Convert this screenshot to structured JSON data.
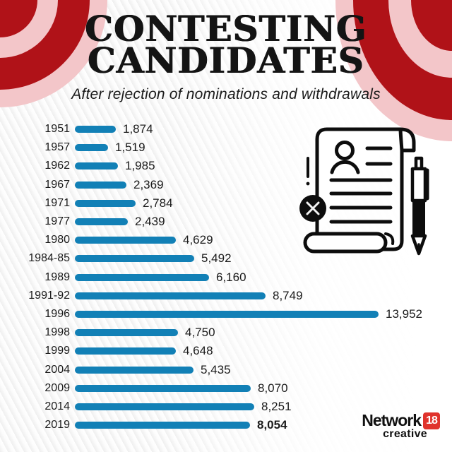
{
  "header": {
    "title_line1": "CONTESTING",
    "title_line2": "CANDIDATES",
    "subtitle": "After rejection of nominations and withdrawals"
  },
  "chart_data": {
    "type": "bar",
    "orientation": "horizontal",
    "title": "Contesting Candidates — After rejection of nominations and withdrawals",
    "xlabel": "",
    "ylabel": "",
    "grid": false,
    "legend": false,
    "xlim": [
      0,
      13952
    ],
    "categories": [
      "1951",
      "1957",
      "1962",
      "1967",
      "1971",
      "1977",
      "1980",
      "1984-85",
      "1989",
      "1991-92",
      "1996",
      "1998",
      "1999",
      "2004",
      "2009",
      "2014",
      "2019"
    ],
    "values": [
      1874,
      1519,
      1985,
      2369,
      2784,
      2439,
      4629,
      5492,
      6160,
      8749,
      13952,
      4750,
      4648,
      5435,
      8070,
      8251,
      8054
    ],
    "value_labels": [
      "1,874",
      "1,519",
      "1,985",
      "2,369",
      "2,784",
      "2,439",
      "4,629",
      "5,492",
      "6,160",
      "8,749",
      "13,952",
      "4,750",
      "4,648",
      "5,435",
      "8,070",
      "8,251",
      "8,054"
    ],
    "emphasized_category": "2019",
    "bar_color": "#1280b6"
  },
  "icon": {
    "name": "rejected-nomination-document-icon",
    "parts": [
      "scroll-document-icon",
      "person-icon",
      "text-lines-icon",
      "cross-badge-icon",
      "exclamation-icon",
      "pen-icon"
    ]
  },
  "branding": {
    "network": "Network",
    "eighteen": "18",
    "creative": "creative",
    "badge_color": "#e0332c"
  },
  "colors": {
    "bar": "#1280b6",
    "curtain_red": "#b01218",
    "curtain_pink": "#f3c6c9",
    "text": "#161616",
    "icon_ink": "#0d0d0d"
  }
}
